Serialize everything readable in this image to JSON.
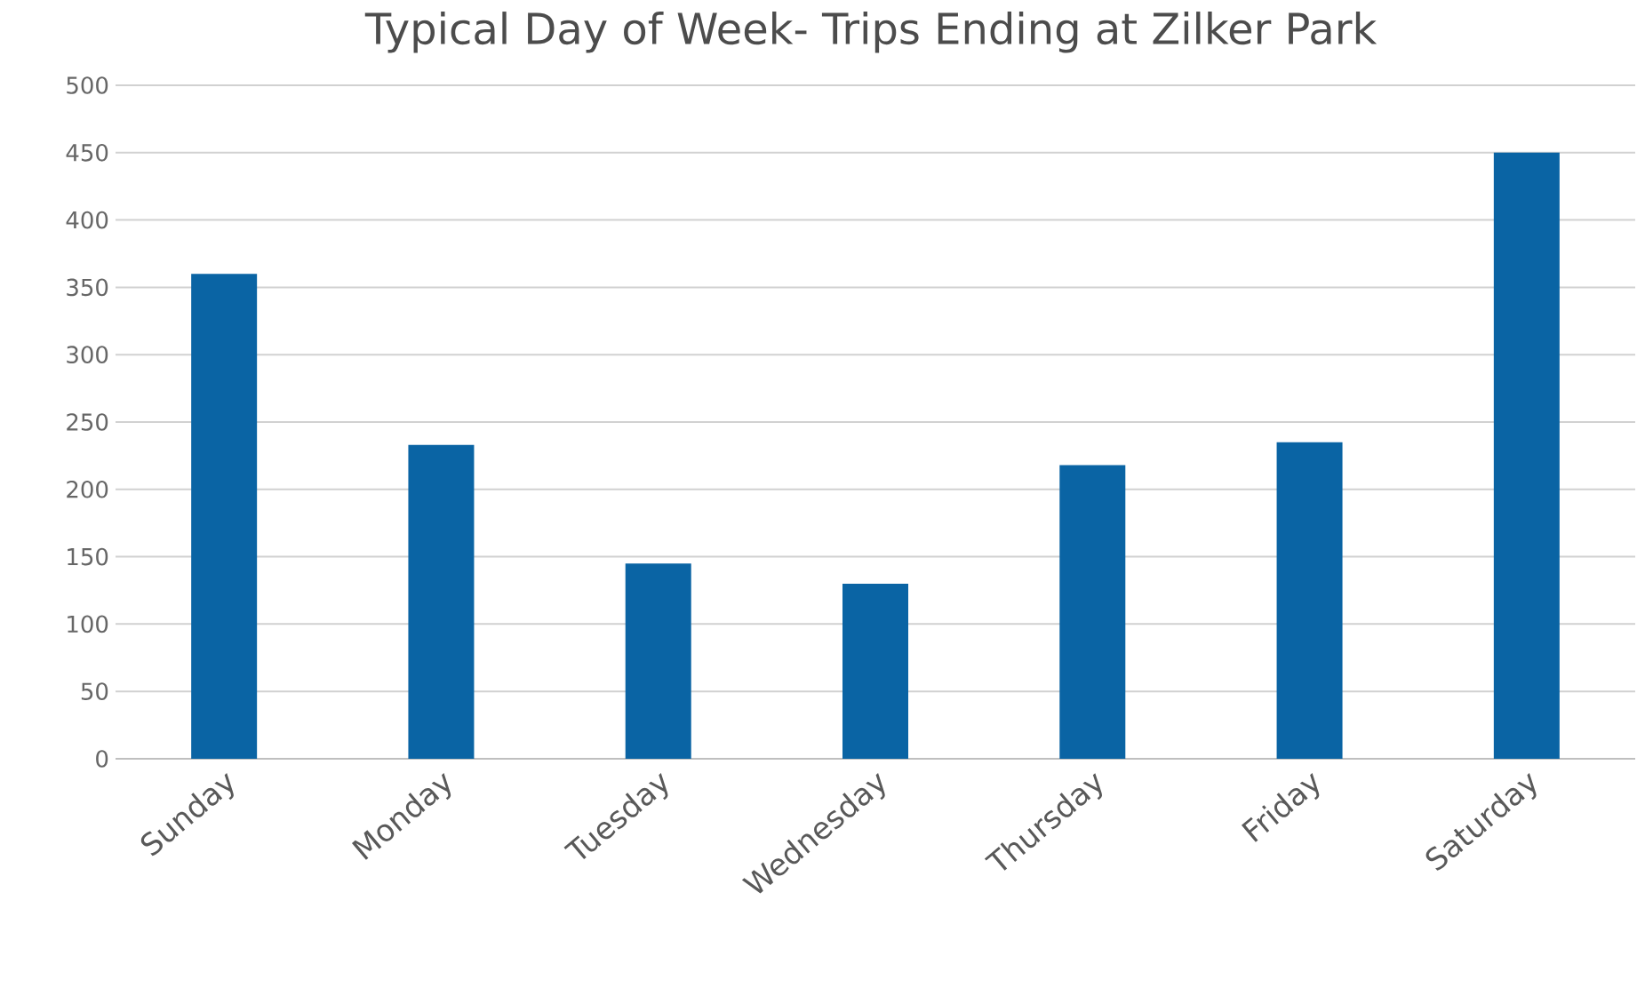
{
  "chart_data": {
    "type": "bar",
    "title": "Typical Day of Week- Trips Ending at Zilker Park",
    "categories": [
      "Sunday",
      "Monday",
      "Tuesday",
      "Wednesday",
      "Thursday",
      "Friday",
      "Saturday"
    ],
    "values": [
      360,
      233,
      145,
      130,
      218,
      235,
      450
    ],
    "color": "#0a64a4",
    "ylim": [
      0,
      500
    ],
    "yticks": [
      0,
      50,
      100,
      150,
      200,
      250,
      300,
      350,
      400,
      450,
      500
    ],
    "grid": "y"
  }
}
